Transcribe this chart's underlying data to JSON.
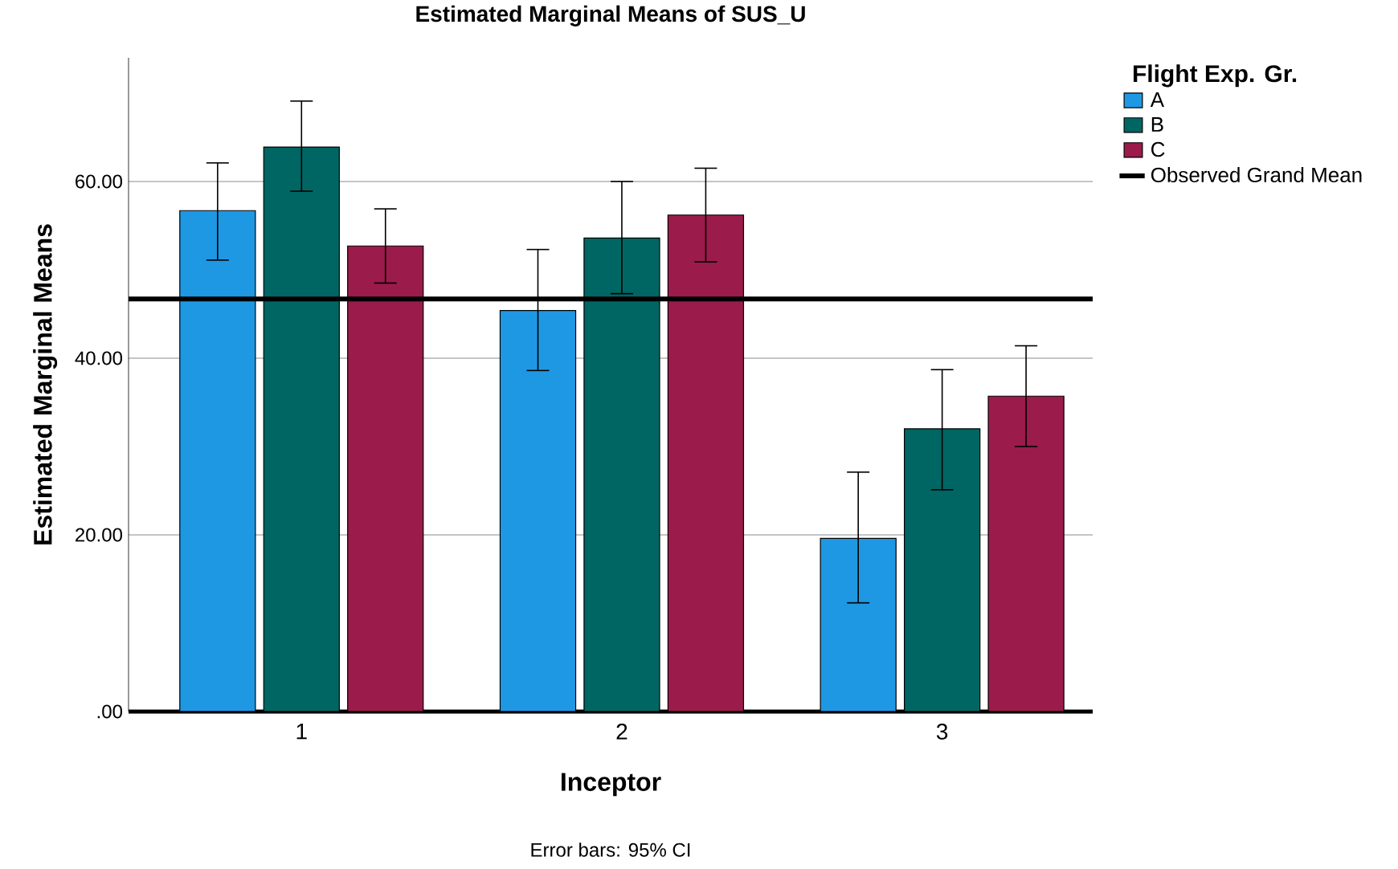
{
  "chart_data": {
    "type": "bar",
    "title": "Estimated Marginal Means of SUS_U",
    "xlabel": "Inceptor",
    "ylabel": "Estimated Marginal Means",
    "legend_title": "Flight Exp. Gr.",
    "categories": [
      "1",
      "2",
      "3"
    ],
    "series": [
      {
        "name": "A",
        "color": "#1f98e4",
        "values": [
          56.7,
          45.4,
          19.6
        ],
        "errors": [
          [
            51.1,
            62.1
          ],
          [
            38.6,
            52.3
          ],
          [
            12.3,
            27.1
          ]
        ]
      },
      {
        "name": "B",
        "color": "#006663",
        "values": [
          63.9,
          53.6,
          32.0
        ],
        "errors": [
          [
            58.9,
            69.1
          ],
          [
            47.3,
            60.0
          ],
          [
            25.1,
            38.7
          ]
        ]
      },
      {
        "name": "C",
        "color": "#9b1b4b",
        "values": [
          52.7,
          56.2,
          35.7
        ],
        "errors": [
          [
            48.5,
            56.9
          ],
          [
            50.9,
            61.5
          ],
          [
            30.0,
            41.4
          ]
        ]
      }
    ],
    "ylim": [
      0,
      74
    ],
    "yticks": [
      {
        "value": 0,
        "label": ".00"
      },
      {
        "value": 20,
        "label": "20.00"
      },
      {
        "value": 40,
        "label": "40.00"
      },
      {
        "value": 60,
        "label": "60.00"
      }
    ],
    "ref_lines": [
      {
        "axis": "y",
        "value": 46.7,
        "label": "Observed Grand Mean",
        "color": "#000000"
      }
    ],
    "grid": "y",
    "legend": "right",
    "annotations": [
      "Error bars: 95% CI"
    ]
  }
}
